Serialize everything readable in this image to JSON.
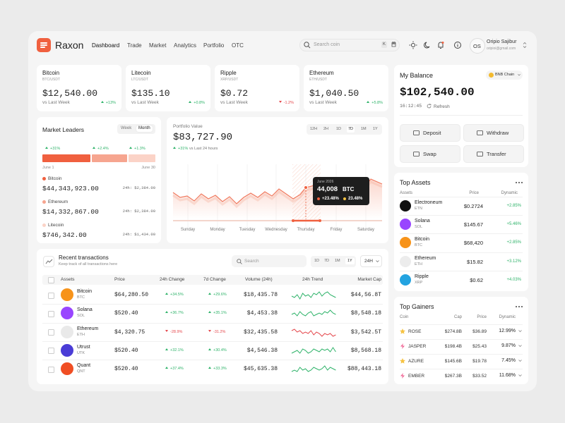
{
  "header": {
    "brand": "Raxon",
    "nav": [
      "Dashboard",
      "Trade",
      "Market",
      "Analytics",
      "Portfolio",
      "OTC"
    ],
    "search_placeholder": "Search coin",
    "shortcut": "K",
    "user": {
      "initials": "OS",
      "name": "Oripio Sajibur",
      "email": "oripioi@gmail.com"
    }
  },
  "tickers": [
    {
      "name": "Bitcoin",
      "pair": "BTC/USDT",
      "price": "$12,540.00",
      "caption": "vs Last Week",
      "change": "+13%"
    },
    {
      "name": "Litecoin",
      "pair": "LTC/USDT",
      "price": "$135.10",
      "caption": "vs Last Week",
      "change": "+0.8%"
    },
    {
      "name": "Ripple",
      "pair": "XRP/USDT",
      "price": "$0.72",
      "caption": "vs Last Week",
      "change": "-1.2%"
    },
    {
      "name": "Ethereum",
      "pair": "ETH/USDT",
      "price": "$1,040.50",
      "caption": "vs Last Week",
      "change": "+5.8%"
    }
  ],
  "market_leaders": {
    "title": "Market Leaders",
    "toggles": [
      "Week",
      "Month"
    ],
    "bar_labels": [
      "+31%",
      "+2.4%",
      "+1.3%"
    ],
    "axis": [
      "June 1",
      "June 30"
    ],
    "items": [
      {
        "name": "Bitcoin",
        "value": "$44,343,923.00",
        "change": "24h: $2,384.00"
      },
      {
        "name": "Ethereum",
        "value": "$14,332,867.00",
        "change": "24h: $2,384.00"
      },
      {
        "name": "Litecoin",
        "value": "$746,342.00",
        "change": "24h: $1,434.00"
      }
    ]
  },
  "portfolio": {
    "label": "Portfolio Value",
    "value": "$83,727.90",
    "change": "+31%",
    "change_caption": "vs Last 24 hours",
    "ranges": [
      "12H",
      "2H",
      "1D",
      "7D",
      "1M",
      "1Y"
    ],
    "days": [
      "Sunday",
      "Monday",
      "Tuesday",
      "Wednesday",
      "Thursday",
      "Friday",
      "Saturday"
    ],
    "tooltip": {
      "date": "June 2026",
      "value": "44,008",
      "unit": "BTC",
      "change_a": "+23.48%",
      "change_b": "23.48%"
    }
  },
  "transactions": {
    "title": "Recent transactions",
    "subtitle": "Keep track of all transactions here",
    "search_placeholder": "Search",
    "ranges": [
      "1D",
      "7D",
      "1M",
      "1Y"
    ],
    "period": "24H",
    "columns": [
      "Assets",
      "Price",
      "24h Change",
      "7d Change",
      "Volume (24h)",
      "24h Trend",
      "Market Cap"
    ],
    "rows": [
      {
        "name": "Bitcoin",
        "symbol": "BTC",
        "price": "$64,280.50",
        "change_24h": "+34.5%",
        "change_7d": "+29.6%",
        "volume": "$18,435.78",
        "market_cap": "$44,56.8T"
      },
      {
        "name": "Solana",
        "symbol": "SOL",
        "price": "$520.40",
        "change_24h": "+36.7%",
        "change_7d": "+35.1%",
        "volume": "$4,453.38",
        "market_cap": "$8,548.18"
      },
      {
        "name": "Ethereum",
        "symbol": "ETH",
        "price": "$4,320.75",
        "change_24h": "-28.9%",
        "change_7d": "-31.2%",
        "volume": "$32,435.58",
        "market_cap": "$3,542.5T"
      },
      {
        "name": "Utrust",
        "symbol": "UTK",
        "price": "$520.40",
        "change_24h": "+32.1%",
        "change_7d": "+30.4%",
        "volume": "$4,546.38",
        "market_cap": "$8,568.18"
      },
      {
        "name": "Quant",
        "symbol": "QNT",
        "price": "$520.40",
        "change_24h": "+37.4%",
        "change_7d": "+33.3%",
        "volume": "$45,635.38",
        "market_cap": "$88,443.18"
      }
    ]
  },
  "balance": {
    "title": "My Balance",
    "chain": "BNB Chain",
    "value": "$102,540.00",
    "time": "16:12:45",
    "refresh": "Refresh",
    "actions": [
      "Deposit",
      "Withdraw",
      "Swap",
      "Transfer"
    ]
  },
  "top_assets": {
    "title": "Top Assets",
    "columns": [
      "Assets",
      "Price",
      "Dynamic"
    ],
    "rows": [
      {
        "name": "Electroneum",
        "symbol": "ETN",
        "price": "$0.2724",
        "dynamic": "+2.85%"
      },
      {
        "name": "Solana",
        "symbol": "SOL",
        "price": "$145.67",
        "dynamic": "+5.46%"
      },
      {
        "name": "Bitcoin",
        "symbol": "BTC",
        "price": "$68,420",
        "dynamic": "+2.85%"
      },
      {
        "name": "Ethereum",
        "symbol": "ETH",
        "price": "$15.82",
        "dynamic": "+3.12%"
      },
      {
        "name": "Ripple",
        "symbol": "XRP",
        "price": "$0.62",
        "dynamic": "+4.03%"
      }
    ]
  },
  "top_gainers": {
    "title": "Top Gainers",
    "columns": [
      "Coin",
      "Cap",
      "Price",
      "Dynamic"
    ],
    "rows": [
      {
        "coin": "ROSE",
        "cap": "$274.8B",
        "price": "$36.89",
        "dynamic": "12.99%"
      },
      {
        "coin": "JASPER",
        "cap": "$198.4B",
        "price": "$25.43",
        "dynamic": "9.87%"
      },
      {
        "coin": "AZURE",
        "cap": "$145.6B",
        "price": "$19.78",
        "dynamic": "7.45%"
      },
      {
        "coin": "EMBER",
        "cap": "$267.3B",
        "price": "$33.52",
        "dynamic": "11.68%"
      }
    ]
  }
}
